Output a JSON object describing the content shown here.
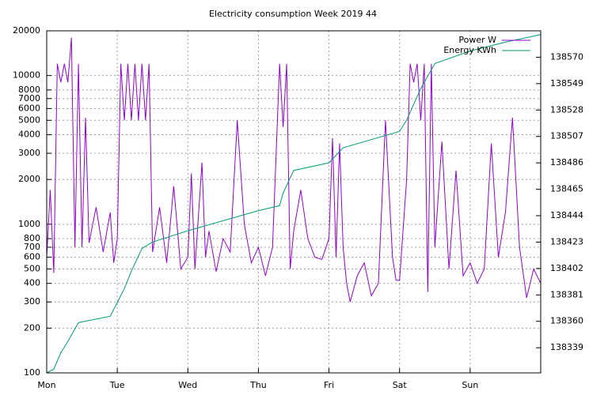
{
  "chart_data": {
    "type": "line",
    "title": "Electricity consumption Week 2019 44",
    "log_y": true,
    "grid": true,
    "legend": "top-right",
    "xlim": [
      0,
      7
    ],
    "xticks": [
      {
        "value": 0,
        "label": "Mon"
      },
      {
        "value": 1,
        "label": "Tue"
      },
      {
        "value": 2,
        "label": "Wed"
      },
      {
        "value": 3,
        "label": "Thu"
      },
      {
        "value": 4,
        "label": "Fri"
      },
      {
        "value": 5,
        "label": "Sat"
      },
      {
        "value": 6,
        "label": "Sun"
      }
    ],
    "ylim": [
      100,
      20000
    ],
    "yticks": [
      100,
      200,
      300,
      400,
      500,
      600,
      700,
      800,
      1000,
      2000,
      3000,
      4000,
      5000,
      6000,
      7000,
      8000,
      10000,
      20000
    ],
    "y2lim": [
      138319,
      138591
    ],
    "y2ticks": [
      138339,
      138360,
      138381,
      138402,
      138423,
      138444,
      138465,
      138486,
      138507,
      138528,
      138549,
      138570
    ],
    "series": [
      {
        "name": "Power W",
        "color": "#9400d3",
        "x": [
          0,
          0.05,
          0.1,
          0.15,
          0.2,
          0.25,
          0.3,
          0.35,
          0.4,
          0.45,
          0.5,
          0.55,
          0.6,
          0.7,
          0.8,
          0.9,
          0.95,
          1.0,
          1.05,
          1.1,
          1.15,
          1.2,
          1.25,
          1.3,
          1.35,
          1.4,
          1.45,
          1.5,
          1.6,
          1.7,
          1.8,
          1.9,
          2.0,
          2.05,
          2.1,
          2.2,
          2.25,
          2.3,
          2.4,
          2.5,
          2.6,
          2.7,
          2.8,
          2.9,
          3.0,
          3.1,
          3.2,
          3.3,
          3.35,
          3.4,
          3.45,
          3.5,
          3.6,
          3.7,
          3.8,
          3.9,
          4.0,
          4.05,
          4.1,
          4.15,
          4.2,
          4.25,
          4.3,
          4.4,
          4.5,
          4.6,
          4.7,
          4.8,
          4.9,
          4.95,
          5.0,
          5.1,
          5.15,
          5.2,
          5.25,
          5.3,
          5.35,
          5.4,
          5.45,
          5.5,
          5.6,
          5.7,
          5.8,
          5.9,
          6.0,
          6.1,
          6.2,
          6.3,
          6.4,
          6.5,
          6.6,
          6.7,
          6.8,
          6.9,
          7.0
        ],
        "values": [
          600,
          1700,
          470,
          12000,
          9000,
          12000,
          9000,
          18000,
          700,
          12000,
          700,
          5200,
          750,
          1300,
          650,
          1200,
          550,
          800,
          12000,
          5000,
          12000,
          5000,
          12000,
          5000,
          12000,
          5000,
          12000,
          650,
          1300,
          550,
          1800,
          500,
          600,
          2200,
          500,
          2600,
          600,
          900,
          480,
          800,
          650,
          5000,
          1000,
          550,
          700,
          450,
          700,
          12000,
          4500,
          12000,
          500,
          900,
          1700,
          800,
          600,
          580,
          800,
          3800,
          600,
          3500,
          700,
          400,
          300,
          450,
          550,
          330,
          400,
          5000,
          600,
          420,
          420,
          2000,
          12000,
          9000,
          12000,
          5000,
          12000,
          350,
          12000,
          700,
          3600,
          500,
          2300,
          450,
          550,
          400,
          500,
          3500,
          600,
          1200,
          5200,
          700,
          320,
          500,
          400
        ]
      },
      {
        "name": "Energy KWh",
        "color": "#009e73",
        "axis": "y2",
        "x": [
          0,
          0.1,
          0.2,
          0.3,
          0.45,
          0.9,
          1.0,
          1.1,
          1.2,
          1.35,
          1.5,
          2.0,
          2.5,
          3.0,
          3.3,
          3.35,
          3.5,
          4.0,
          4.2,
          5.0,
          5.1,
          5.3,
          5.5,
          6.0,
          6.5,
          7.0
        ],
        "values": [
          138319,
          138322,
          138335,
          138344,
          138359,
          138364,
          138375,
          138386,
          138400,
          138418,
          138423,
          138432,
          138440,
          138448,
          138452,
          138462,
          138480,
          138486,
          138498,
          138511,
          138520,
          138545,
          138565,
          138575,
          138582,
          138588
        ]
      }
    ]
  }
}
